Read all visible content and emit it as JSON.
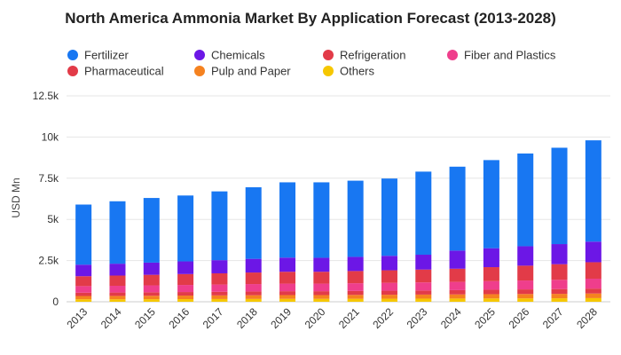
{
  "chart_data": {
    "type": "bar",
    "stacked": true,
    "title": "North America Ammonia Market By Application Forecast (2013-2028)",
    "xlabel": "",
    "ylabel": "USD Mn",
    "ylim": [
      0,
      12500
    ],
    "yticks": [
      0,
      2500,
      5000,
      7500,
      10000,
      12500
    ],
    "ytick_labels": [
      "0",
      "2.5k",
      "5k",
      "7.5k",
      "10k",
      "12.5k"
    ],
    "grid": true,
    "legend_position": "top",
    "categories": [
      "2013",
      "2014",
      "2015",
      "2016",
      "2017",
      "2018",
      "2019",
      "2020",
      "2021",
      "2022",
      "2023",
      "2024",
      "2025",
      "2026",
      "2027",
      "2028"
    ],
    "series": [
      {
        "name": "Others",
        "color": "#f6c700",
        "values": [
          150,
          150,
          155,
          160,
          165,
          170,
          175,
          175,
          180,
          185,
          190,
          195,
          200,
          205,
          210,
          220
        ]
      },
      {
        "name": "Pulp and Paper",
        "color": "#f58220",
        "values": [
          200,
          205,
          210,
          215,
          220,
          225,
          230,
          230,
          235,
          240,
          245,
          250,
          260,
          265,
          270,
          280
        ]
      },
      {
        "name": "Pharmaceutical",
        "color": "#e23b48",
        "values": [
          200,
          205,
          210,
          215,
          220,
          230,
          235,
          235,
          240,
          245,
          250,
          260,
          270,
          280,
          290,
          300
        ]
      },
      {
        "name": "Fiber and Plastics",
        "color": "#ef3e8c",
        "values": [
          400,
          410,
          420,
          430,
          440,
          450,
          460,
          460,
          470,
          480,
          490,
          500,
          520,
          540,
          560,
          600
        ]
      },
      {
        "name": "Refrigeration",
        "color": "#e23b48",
        "values": [
          600,
          620,
          640,
          660,
          680,
          700,
          720,
          720,
          740,
          760,
          780,
          800,
          850,
          900,
          950,
          1000
        ]
      },
      {
        "name": "Chemicals",
        "color": "#6c17e6",
        "values": [
          700,
          720,
          740,
          770,
          800,
          830,
          860,
          850,
          860,
          880,
          900,
          1100,
          1150,
          1180,
          1220,
          1250
        ]
      },
      {
        "name": "Fertilizer",
        "color": "#1877f2",
        "values": [
          3650,
          3790,
          3925,
          4000,
          4175,
          4345,
          4570,
          4580,
          4625,
          4690,
          5045,
          5095,
          5350,
          5630,
          5850,
          6150
        ]
      }
    ],
    "legend": [
      {
        "name": "Fertilizer",
        "color": "#1877f2"
      },
      {
        "name": "Chemicals",
        "color": "#6c17e6"
      },
      {
        "name": "Refrigeration",
        "color": "#e23b48"
      },
      {
        "name": "Fiber and Plastics",
        "color": "#ef3e8c"
      },
      {
        "name": "Pharmaceutical",
        "color": "#e23b48"
      },
      {
        "name": "Pulp and Paper",
        "color": "#f58220"
      },
      {
        "name": "Others",
        "color": "#f6c700"
      }
    ]
  }
}
